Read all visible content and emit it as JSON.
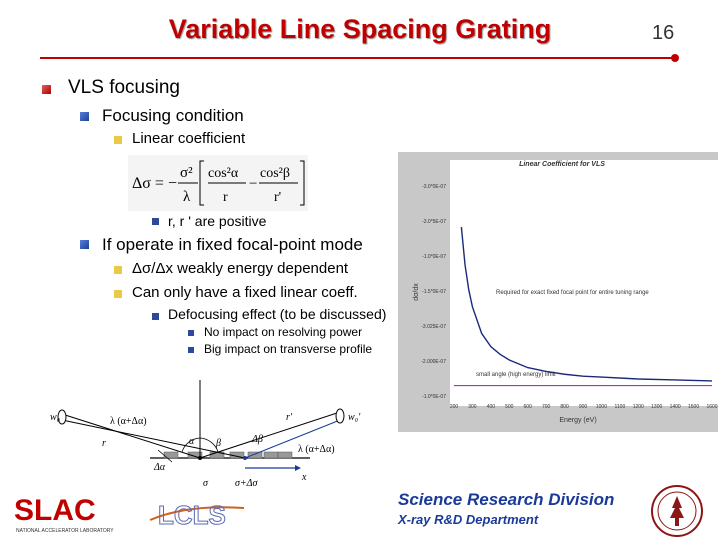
{
  "title": "Variable Line Spacing Grating",
  "slide_number": "16",
  "bullets": {
    "l1": "VLS focusing",
    "l2a": "Focusing condition",
    "l3a": "Linear coefficient",
    "l4a": "r, r ' are positive",
    "l2b": "If operate in fixed focal-point mode",
    "l3b": "Δσ/Δx weakly energy dependent",
    "l3c": "Can only have a fixed linear coeff.",
    "l4b": "Defocusing effect (to be discussed)",
    "l5a": "No impact on resolving power",
    "l5b": "Big impact on transverse profile"
  },
  "equation": {
    "lhs": "Δσ = −",
    "sigma2": "σ²",
    "lambda": "λ",
    "t1n": "cos²α",
    "t1d": "r",
    "minus": "−",
    "t2n": "cos²β",
    "t2d": "r'"
  },
  "diagram": {
    "w0": "w₀",
    "w0p": "w₀'",
    "lam1": "λ (α+Δα)",
    "lam2": "λ (α+Δα)",
    "r": "r",
    "rp": "r'",
    "alpha": "α",
    "beta": "β",
    "dbeta": "Δβ",
    "dalpha": "Δα",
    "sigma": "σ",
    "sigma2": "σ+Δσ",
    "x": "x"
  },
  "chart_data": {
    "type": "line",
    "title": "Linear Coefficient for VLS",
    "xlabel": "Energy (eV)",
    "ylabel": "dσ/dx",
    "xlim": [
      200,
      1600
    ],
    "ylim": [
      -1.6e-07,
      -4e-08
    ],
    "x_ticks": [
      "200",
      "300",
      "400",
      "500",
      "600",
      "700",
      "800",
      "900",
      "1000",
      "1100",
      "1200",
      "1300",
      "1400",
      "1500",
      "1600"
    ],
    "y_ticks": [
      "-3.0*0E-07",
      "-3.0*5E-07",
      "-1.0*0E-07",
      "-1.5*0E-07",
      "-3.025E-07",
      "-2.000E-07",
      "-1.0*0E-07"
    ],
    "series": [
      {
        "name": "",
        "x": [
          240,
          260,
          280,
          300,
          350,
          400,
          450,
          500,
          600,
          700,
          800,
          900,
          1000,
          1200,
          1400,
          1600
        ],
        "y": [
          -7e-08,
          -9e-08,
          -1.03e-07,
          -1.12e-07,
          -1.26e-07,
          -1.33e-07,
          -1.37e-07,
          -1.4e-07,
          -1.44e-07,
          -1.46e-07,
          -1.475e-07,
          -1.485e-07,
          -1.49e-07,
          -1.5e-07,
          -1.505e-07,
          -1.51e-07
        ],
        "color": "#1a2a7a"
      },
      {
        "name": "",
        "x": [
          200,
          1600
        ],
        "y": [
          -1.535e-07,
          -1.535e-07
        ],
        "color": "#c000c0"
      }
    ],
    "annotations": [
      "Required for exact fixed focal point for entire tuning range",
      "small angle (high energy) limit"
    ],
    "grid": false
  },
  "footer": {
    "srd": "Science Research Division",
    "xray": "X-ray R&D Department",
    "slac": "SLAC",
    "slac_sub": "NATIONAL ACCELERATOR LABORATORY",
    "lcls": "LCLS"
  },
  "colors": {
    "title": "#c00000",
    "footer_text": "#1a3a9a"
  }
}
